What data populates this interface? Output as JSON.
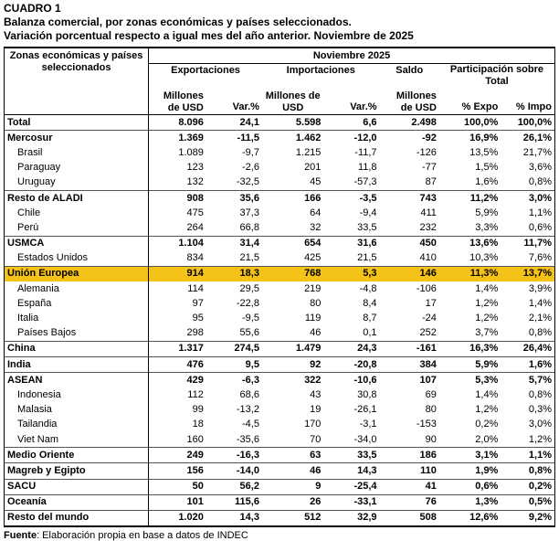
{
  "title": "CUADRO 1",
  "subtitle1": "Balanza comercial, por zonas económicas y países seleccionados.",
  "subtitle2": "Variación porcentual respecto a igual mes del año anterior. Noviembre de 2025",
  "header": {
    "zone_col": "Zonas económicas y países seleccionados",
    "period": "Noviembre 2025",
    "exports": "Exportaciones",
    "imports": "Importaciones",
    "balance": "Saldo",
    "share": "Participación sobre Total",
    "musd": "Millones de USD",
    "var": "Var.%",
    "pct_expo": "% Expo",
    "pct_impo": "% Impo"
  },
  "rows": [
    {
      "name": "Total",
      "type": "group",
      "exp": "8.096",
      "exp_var": "24,1",
      "imp": "5.598",
      "imp_var": "6,6",
      "bal": "2.498",
      "pe": "100,0%",
      "pi": "100,0%"
    },
    {
      "name": "Mercosur",
      "type": "group",
      "exp": "1.369",
      "exp_var": "-11,5",
      "imp": "1.462",
      "imp_var": "-12,0",
      "bal": "-92",
      "pe": "16,9%",
      "pi": "26,1%"
    },
    {
      "name": "Brasil",
      "type": "sub",
      "exp": "1.089",
      "exp_var": "-9,7",
      "imp": "1.215",
      "imp_var": "-11,7",
      "bal": "-126",
      "pe": "13,5%",
      "pi": "21,7%"
    },
    {
      "name": "Paraguay",
      "type": "sub",
      "exp": "123",
      "exp_var": "-2,6",
      "imp": "201",
      "imp_var": "11,8",
      "bal": "-77",
      "pe": "1,5%",
      "pi": "3,6%"
    },
    {
      "name": "Uruguay",
      "type": "sub",
      "exp": "132",
      "exp_var": "-32,5",
      "imp": "45",
      "imp_var": "-57,3",
      "bal": "87",
      "pe": "1,6%",
      "pi": "0,8%"
    },
    {
      "name": "Resto de ALADI",
      "type": "group",
      "exp": "908",
      "exp_var": "35,6",
      "imp": "166",
      "imp_var": "-3,5",
      "bal": "743",
      "pe": "11,2%",
      "pi": "3,0%"
    },
    {
      "name": "Chile",
      "type": "sub",
      "exp": "475",
      "exp_var": "37,3",
      "imp": "64",
      "imp_var": "-9,4",
      "bal": "411",
      "pe": "5,9%",
      "pi": "1,1%"
    },
    {
      "name": "Perú",
      "type": "sub",
      "exp": "264",
      "exp_var": "66,8",
      "imp": "32",
      "imp_var": "33,5",
      "bal": "232",
      "pe": "3,3%",
      "pi": "0,6%"
    },
    {
      "name": "USMCA",
      "type": "group",
      "exp": "1.104",
      "exp_var": "31,4",
      "imp": "654",
      "imp_var": "31,6",
      "bal": "450",
      "pe": "13,6%",
      "pi": "11,7%"
    },
    {
      "name": "Estados Unidos",
      "type": "sub",
      "exp": "834",
      "exp_var": "21,5",
      "imp": "425",
      "imp_var": "21,5",
      "bal": "410",
      "pe": "10,3%",
      "pi": "7,6%"
    },
    {
      "name": "Unión Europea",
      "type": "highlight",
      "exp": "914",
      "exp_var": "18,3",
      "imp": "768",
      "imp_var": "5,3",
      "bal": "146",
      "pe": "11,3%",
      "pi": "13,7%"
    },
    {
      "name": "Alemania",
      "type": "sub",
      "exp": "114",
      "exp_var": "29,5",
      "imp": "219",
      "imp_var": "-4,8",
      "bal": "-106",
      "pe": "1,4%",
      "pi": "3,9%"
    },
    {
      "name": "España",
      "type": "sub",
      "exp": "97",
      "exp_var": "-22,8",
      "imp": "80",
      "imp_var": "8,4",
      "bal": "17",
      "pe": "1,2%",
      "pi": "1,4%"
    },
    {
      "name": "Italia",
      "type": "sub",
      "exp": "95",
      "exp_var": "-9,5",
      "imp": "119",
      "imp_var": "8,7",
      "bal": "-24",
      "pe": "1,2%",
      "pi": "2,1%"
    },
    {
      "name": "Países Bajos",
      "type": "sub",
      "exp": "298",
      "exp_var": "55,6",
      "imp": "46",
      "imp_var": "0,1",
      "bal": "252",
      "pe": "3,7%",
      "pi": "0,8%"
    },
    {
      "name": "China",
      "type": "group",
      "exp": "1.317",
      "exp_var": "274,5",
      "imp": "1.479",
      "imp_var": "24,3",
      "bal": "-161",
      "pe": "16,3%",
      "pi": "26,4%"
    },
    {
      "name": "India",
      "type": "group",
      "exp": "476",
      "exp_var": "9,5",
      "imp": "92",
      "imp_var": "-20,8",
      "bal": "384",
      "pe": "5,9%",
      "pi": "1,6%"
    },
    {
      "name": "ASEAN",
      "type": "group",
      "exp": "429",
      "exp_var": "-6,3",
      "imp": "322",
      "imp_var": "-10,6",
      "bal": "107",
      "pe": "5,3%",
      "pi": "5,7%"
    },
    {
      "name": "Indonesia",
      "type": "sub",
      "exp": "112",
      "exp_var": "68,6",
      "imp": "43",
      "imp_var": "30,8",
      "bal": "69",
      "pe": "1,4%",
      "pi": "0,8%"
    },
    {
      "name": "Malasia",
      "type": "sub",
      "exp": "99",
      "exp_var": "-13,2",
      "imp": "19",
      "imp_var": "-26,1",
      "bal": "80",
      "pe": "1,2%",
      "pi": "0,3%"
    },
    {
      "name": "Tailandia",
      "type": "sub",
      "exp": "18",
      "exp_var": "-4,5",
      "imp": "170",
      "imp_var": "-3,1",
      "bal": "-153",
      "pe": "0,2%",
      "pi": "3,0%"
    },
    {
      "name": "Viet Nam",
      "type": "sub",
      "exp": "160",
      "exp_var": "-35,6",
      "imp": "70",
      "imp_var": "-34,0",
      "bal": "90",
      "pe": "2,0%",
      "pi": "1,2%"
    },
    {
      "name": "Medio Oriente",
      "type": "group",
      "exp": "249",
      "exp_var": "-16,3",
      "imp": "63",
      "imp_var": "33,5",
      "bal": "186",
      "pe": "3,1%",
      "pi": "1,1%"
    },
    {
      "name": "Magreb y Egipto",
      "type": "group",
      "exp": "156",
      "exp_var": "-14,0",
      "imp": "46",
      "imp_var": "14,3",
      "bal": "110",
      "pe": "1,9%",
      "pi": "0,8%"
    },
    {
      "name": "SACU",
      "type": "group",
      "exp": "50",
      "exp_var": "56,2",
      "imp": "9",
      "imp_var": "-25,4",
      "bal": "41",
      "pe": "0,6%",
      "pi": "0,2%"
    },
    {
      "name": "Oceanía",
      "type": "group",
      "exp": "101",
      "exp_var": "115,6",
      "imp": "26",
      "imp_var": "-33,1",
      "bal": "76",
      "pe": "1,3%",
      "pi": "0,5%"
    },
    {
      "name": "Resto del mundo",
      "type": "group",
      "exp": "1.020",
      "exp_var": "14,3",
      "imp": "512",
      "imp_var": "32,9",
      "bal": "508",
      "pe": "12,6%",
      "pi": "9,2%"
    }
  ],
  "source_label": "Fuente",
  "source_text": ": Elaboración propia en base a datos de INDEC",
  "colors": {
    "highlight": "#f5c318"
  }
}
